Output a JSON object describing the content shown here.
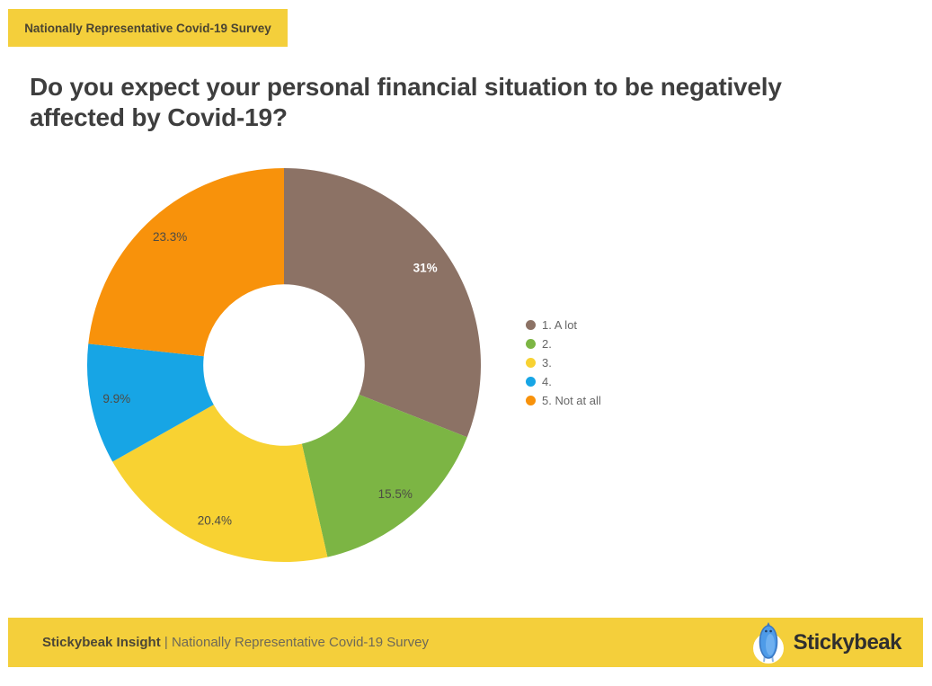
{
  "badge": {
    "label": "Nationally Representative Covid-19 Survey"
  },
  "title": {
    "line1": "Do you expect your personal financial situation to be negatively",
    "line2": "affected by Covid-19?"
  },
  "chart_data": {
    "type": "pie",
    "subtype": "donut",
    "title": "Do you expect your personal financial situation to be negatively affected by Covid-19?",
    "categories": [
      "1. A lot",
      "2.",
      "3.",
      "4.",
      "5. Not at all"
    ],
    "values": [
      31,
      15.5,
      20.4,
      9.9,
      23.3
    ],
    "value_labels": [
      "31%",
      "15.5%",
      "20.4%",
      "9.9%",
      "23.3%"
    ],
    "colors": [
      "#8C7265",
      "#7CB544",
      "#F8D232",
      "#17A5E5",
      "#F8920B"
    ],
    "label_colors": [
      "#FFFFFF",
      "#4D4B44",
      "#4D4B44",
      "#4D4B44",
      "#4D4B44"
    ],
    "label_bold": [
      true,
      false,
      false,
      false,
      false
    ],
    "legend_position": "right",
    "start_angle_deg": 0,
    "direction": "clockwise",
    "hole_ratio": 0.41
  },
  "footer": {
    "brand": "Stickybeak Insight",
    "separator": "|",
    "subtitle": "Nationally Representative Covid-19 Survey",
    "logo_text": "Stickybeak"
  },
  "colors": {
    "accent_yellow": "#F4CF3B",
    "title_text": "#3E3E3E",
    "legend_text": "#666666",
    "logo_blue": "#4E9BE8"
  }
}
